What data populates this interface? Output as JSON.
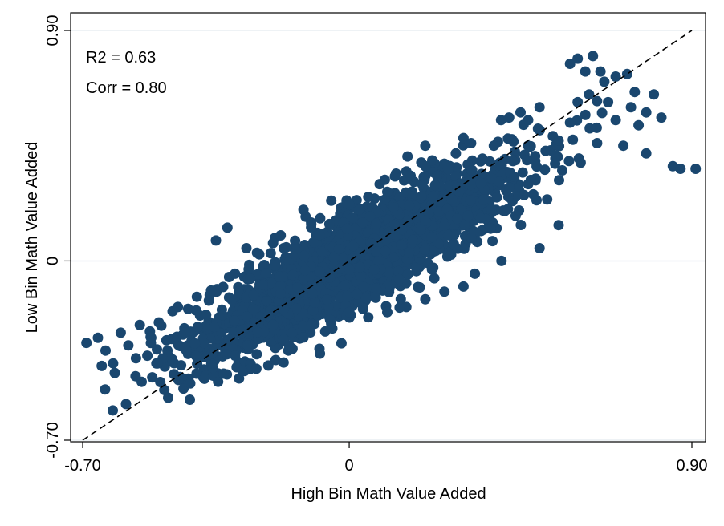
{
  "chart_data": {
    "type": "scatter",
    "title": "",
    "xlabel": "High Bin Math Value Added",
    "ylabel": "Low Bin Math Value Added",
    "xlim": [
      -0.7,
      0.9
    ],
    "ylim": [
      -0.7,
      0.9
    ],
    "x_ticks": [
      {
        "value": -0.7,
        "label": "-0.70"
      },
      {
        "value": 0,
        "label": "0"
      },
      {
        "value": 0.9,
        "label": "0.90"
      }
    ],
    "y_ticks": [
      {
        "value": -0.7,
        "label": "-0.70"
      },
      {
        "value": 0,
        "label": "0"
      },
      {
        "value": 0.9,
        "label": "0.90"
      }
    ],
    "grid": true,
    "annotations": {
      "r2": "R2 = 0.63",
      "corr": "Corr = 0.80"
    },
    "reference_line": {
      "type": "45-degree",
      "style": "dashed",
      "from": [
        -0.7,
        -0.7
      ],
      "to": [
        0.9,
        0.9
      ]
    },
    "marker_color": "#1a476f",
    "outlier_points": [
      [
        -0.69,
        -0.32
      ],
      [
        -0.66,
        -0.3
      ],
      [
        -0.64,
        -0.35
      ],
      [
        -0.65,
        -0.41
      ],
      [
        -0.62,
        -0.4
      ],
      [
        -0.6,
        -0.28
      ],
      [
        -0.58,
        -0.33
      ],
      [
        -0.56,
        -0.38
      ],
      [
        -0.55,
        -0.25
      ],
      [
        -0.53,
        -0.37
      ],
      [
        -0.52,
        -0.3
      ],
      [
        -0.5,
        -0.24
      ],
      [
        -0.48,
        -0.31
      ],
      [
        -0.45,
        -0.18
      ],
      [
        -0.43,
        -0.28
      ],
      [
        -0.4,
        -0.14
      ],
      [
        -0.38,
        -0.46
      ],
      [
        -0.36,
        -0.36
      ],
      [
        -0.33,
        -0.44
      ],
      [
        -0.3,
        -0.37
      ],
      [
        -0.28,
        -0.43
      ],
      [
        -0.26,
        -0.07
      ],
      [
        -0.2,
        0.07
      ],
      [
        -0.18,
        0.1
      ],
      [
        -0.16,
        -0.35
      ],
      [
        -0.12,
        0.2
      ],
      [
        0.05,
        0.25
      ],
      [
        0.1,
        0.27
      ],
      [
        0.12,
        0.33
      ],
      [
        0.15,
        0.35
      ],
      [
        0.2,
        0.45
      ],
      [
        0.25,
        0.38
      ],
      [
        0.3,
        0.48
      ],
      [
        0.35,
        0.4
      ],
      [
        0.38,
        0.45
      ],
      [
        0.42,
        0.56
      ],
      [
        0.45,
        0.58
      ],
      [
        0.47,
        0.55
      ],
      [
        0.5,
        0.6
      ],
      [
        0.55,
        0.47
      ],
      [
        0.58,
        0.54
      ],
      [
        0.6,
        0.62
      ],
      [
        0.62,
        0.57
      ],
      [
        0.63,
        0.65
      ],
      [
        0.65,
        0.52
      ],
      [
        0.67,
        0.7
      ],
      [
        0.68,
        0.62
      ],
      [
        0.7,
        0.55
      ],
      [
        0.72,
        0.45
      ],
      [
        0.74,
        0.6
      ],
      [
        0.76,
        0.53
      ],
      [
        0.78,
        0.42
      ],
      [
        0.8,
        0.65
      ],
      [
        0.82,
        0.56
      ],
      [
        0.85,
        0.37
      ],
      [
        0.87,
        0.36
      ],
      [
        0.91,
        0.36
      ],
      [
        0.58,
        0.77
      ],
      [
        0.6,
        0.79
      ],
      [
        0.62,
        0.74
      ],
      [
        0.64,
        0.8
      ],
      [
        0.66,
        0.74
      ],
      [
        0.7,
        0.72
      ],
      [
        0.73,
        0.73
      ],
      [
        0.75,
        0.66
      ],
      [
        0.78,
        0.58
      ],
      [
        0.43,
        0.39
      ],
      [
        0.47,
        0.3
      ],
      [
        0.52,
        0.24
      ],
      [
        0.55,
        0.14
      ],
      [
        0.5,
        0.05
      ],
      [
        0.4,
        0.0
      ],
      [
        0.33,
        -0.05
      ],
      [
        0.3,
        -0.1
      ],
      [
        0.25,
        -0.12
      ],
      [
        0.2,
        -0.15
      ],
      [
        0.15,
        -0.18
      ],
      [
        0.1,
        -0.2
      ],
      [
        0.05,
        -0.22
      ],
      [
        0.0,
        -0.2
      ],
      [
        -0.05,
        -0.23
      ],
      [
        -0.1,
        -0.25
      ],
      [
        -0.15,
        -0.28
      ],
      [
        -0.2,
        -0.25
      ],
      [
        -0.35,
        0.08
      ],
      [
        -0.32,
        0.13
      ],
      [
        -0.3,
        -0.05
      ],
      [
        -0.27,
        0.05
      ],
      [
        -0.1,
        0.15
      ],
      [
        0.0,
        0.22
      ],
      [
        0.08,
        0.3
      ],
      [
        0.2,
        0.37
      ],
      [
        0.28,
        0.42
      ],
      [
        0.32,
        0.46
      ]
    ]
  }
}
